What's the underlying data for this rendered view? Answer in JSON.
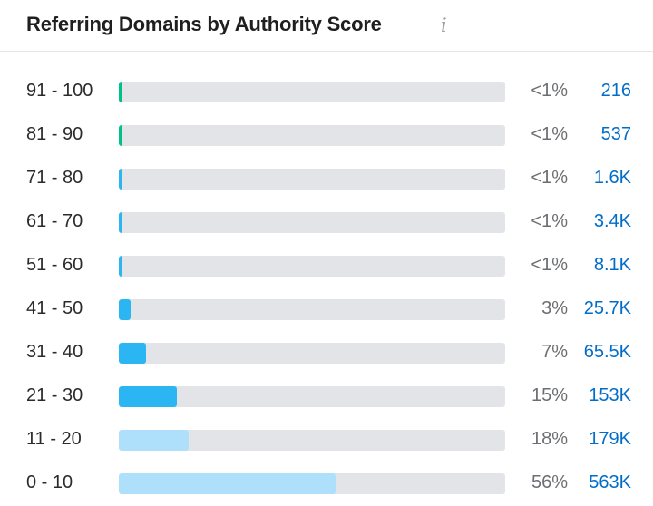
{
  "header": {
    "title": "Referring Domains by Authority Score",
    "info_icon": "info-icon"
  },
  "chart_data": {
    "type": "bar",
    "orientation": "horizontal",
    "title": "Referring Domains by Authority Score",
    "xlim": [
      0,
      100
    ],
    "categories": [
      "91 - 100",
      "81 - 90",
      "71 - 80",
      "61 - 70",
      "51 - 60",
      "41 - 50",
      "31 - 40",
      "21 - 30",
      "11 - 20",
      "0 - 10"
    ],
    "values": [
      0.3,
      0.3,
      0.5,
      0.5,
      0.9,
      3,
      7,
      15,
      18,
      56
    ],
    "percent_labels": [
      "<1%",
      "<1%",
      "<1%",
      "<1%",
      "<1%",
      "3%",
      "7%",
      "15%",
      "18%",
      "56%"
    ],
    "count_labels": [
      "216",
      "537",
      "1.6K",
      "3.4K",
      "8.1K",
      "25.7K",
      "65.5K",
      "153K",
      "179K",
      "563K"
    ],
    "colors": [
      "#00c08b",
      "#00c08b",
      "#2bb5f3",
      "#2bb5f3",
      "#2bb5f3",
      "#2bb5f3",
      "#2bb5f3",
      "#2bb5f3",
      "#aee0fc",
      "#aee0fc"
    ],
    "track_color": "#e3e4e8",
    "legend": "none"
  }
}
